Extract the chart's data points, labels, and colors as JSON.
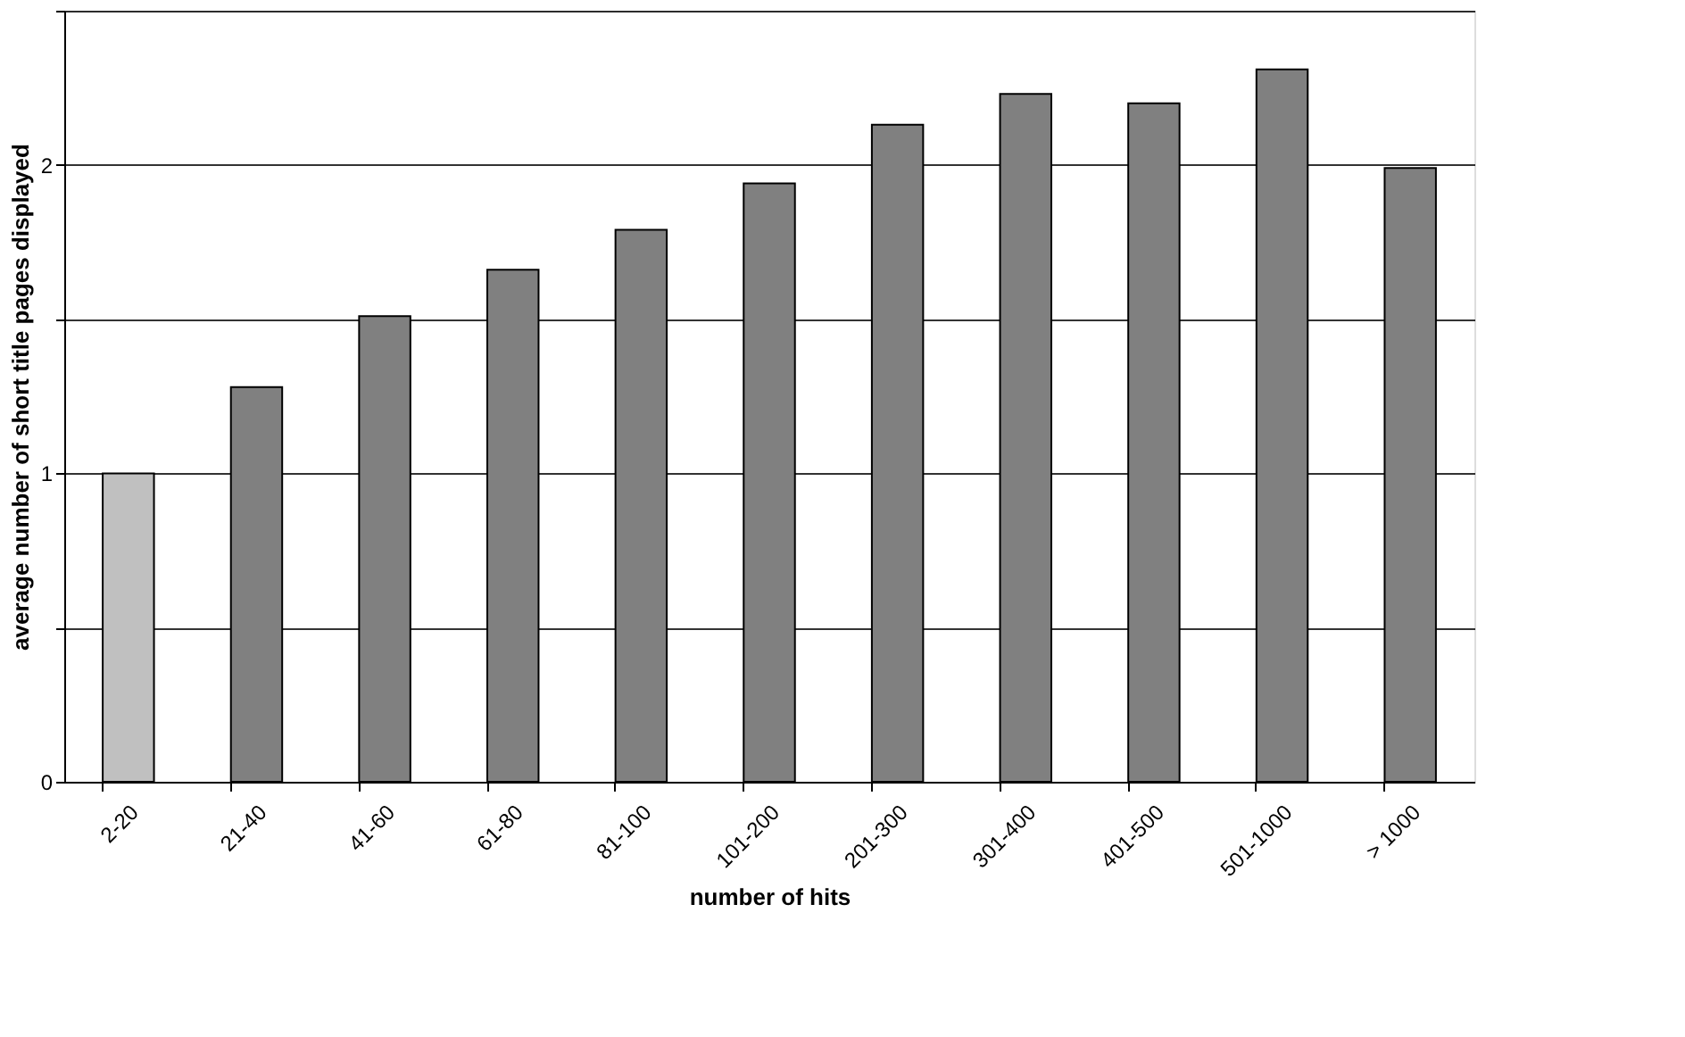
{
  "chart_data": {
    "type": "bar",
    "xlabel": "number of hits",
    "ylabel": "average number of short title pages displayed",
    "categories": [
      "2-20",
      "21-40",
      "41-60",
      "61-80",
      "81-100",
      "101-200",
      "201-300",
      "301-400",
      "401-500",
      "501-1000",
      "> 1000"
    ],
    "values": [
      1.0,
      1.28,
      1.51,
      1.66,
      1.79,
      1.94,
      2.13,
      2.23,
      2.2,
      2.31,
      1.99
    ],
    "colors": [
      "#c0c0c0",
      "#808080",
      "#808080",
      "#808080",
      "#808080",
      "#808080",
      "#808080",
      "#808080",
      "#808080",
      "#808080",
      "#808080"
    ],
    "ylim": [
      0,
      2.5
    ],
    "yticks": [
      0,
      {
        "value": 0.5,
        "label": null
      },
      1,
      {
        "value": 1.5,
        "label": null
      },
      2,
      {
        "value": 2.5,
        "label": null
      }
    ],
    "grid": "y"
  }
}
